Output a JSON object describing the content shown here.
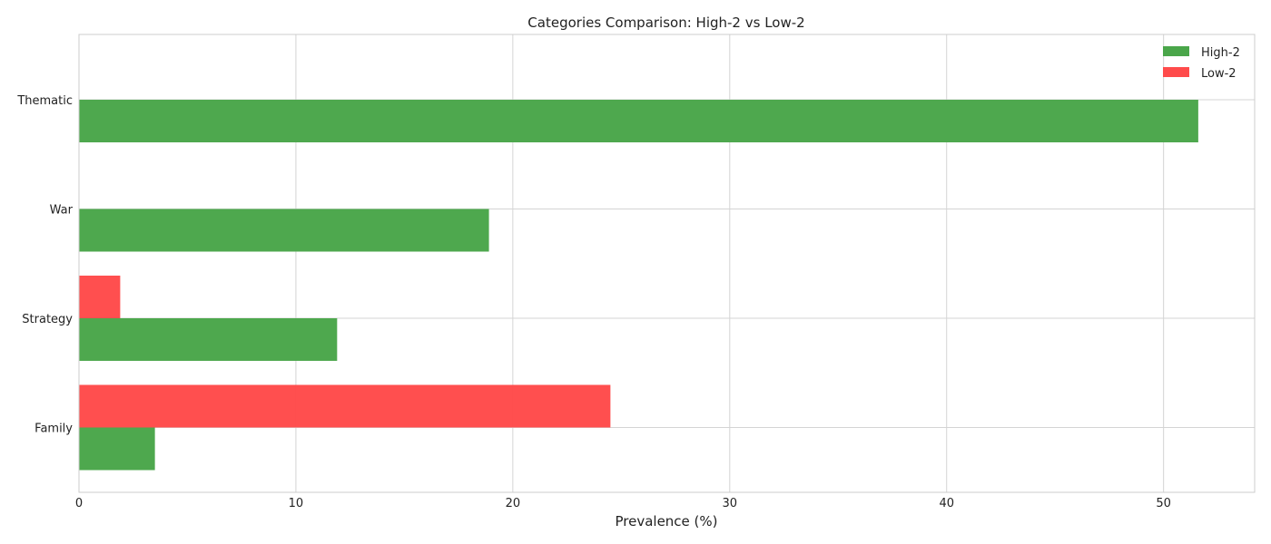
{
  "chart_data": {
    "type": "bar",
    "orientation": "horizontal",
    "title": "Categories Comparison: High-2 vs Low-2",
    "xlabel": "Prevalence (%)",
    "ylabel": "",
    "categories": [
      "Thematic",
      "War",
      "Strategy",
      "Family"
    ],
    "series": [
      {
        "name": "High-2",
        "color": "#4aa64a",
        "values": [
          51.6,
          18.9,
          11.9,
          3.5
        ]
      },
      {
        "name": "Low-2",
        "color": "#ff4b4b",
        "values": [
          0,
          0,
          1.9,
          24.5
        ]
      }
    ],
    "xlim": [
      0,
      54.2
    ],
    "xticks": [
      0,
      10,
      20,
      30,
      40,
      50
    ],
    "grid": true,
    "legend_position": "top-right"
  }
}
